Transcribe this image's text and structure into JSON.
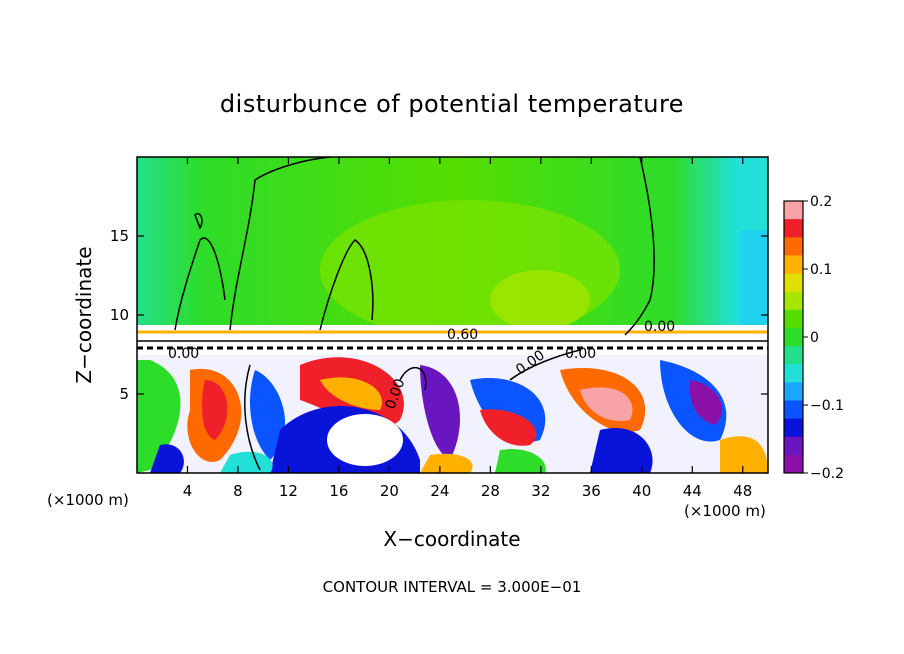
{
  "chart_data": {
    "type": "heatmap",
    "title": "disturbunce of potential temperature",
    "xlabel": "X−coordinate",
    "ylabel": "Z−coordinate",
    "x_unit": "(×1000 m)",
    "x_unit_right": "(×1000 m)",
    "xlim": [
      0,
      50
    ],
    "ylim": [
      0,
      20
    ],
    "xticks": [
      4,
      8,
      12,
      16,
      20,
      24,
      28,
      32,
      36,
      40,
      44,
      48
    ],
    "yticks": [
      5,
      10,
      15
    ],
    "colorbar": {
      "range": [
        -0.2,
        0.2
      ],
      "ticks": [
        "0.2",
        "0.1",
        "0",
        "−0.1",
        "−0.2"
      ],
      "colors": [
        "#f7a3a8",
        "#f0202a",
        "#ff6a00",
        "#ffb000",
        "#e0e000",
        "#a8e600",
        "#55dd00",
        "#2edc2a",
        "#22e08a",
        "#22e0d8",
        "#1aa8ff",
        "#0a55ff",
        "#0a14d8",
        "#6a16c0",
        "#8a10a8"
      ]
    },
    "contour_labels": [
      "0.60",
      "0.00",
      "0.00",
      "0.00",
      "0.00",
      "0.00"
    ],
    "contour_interval_note": "CONTOUR INTERVAL = 3.000E−01"
  }
}
